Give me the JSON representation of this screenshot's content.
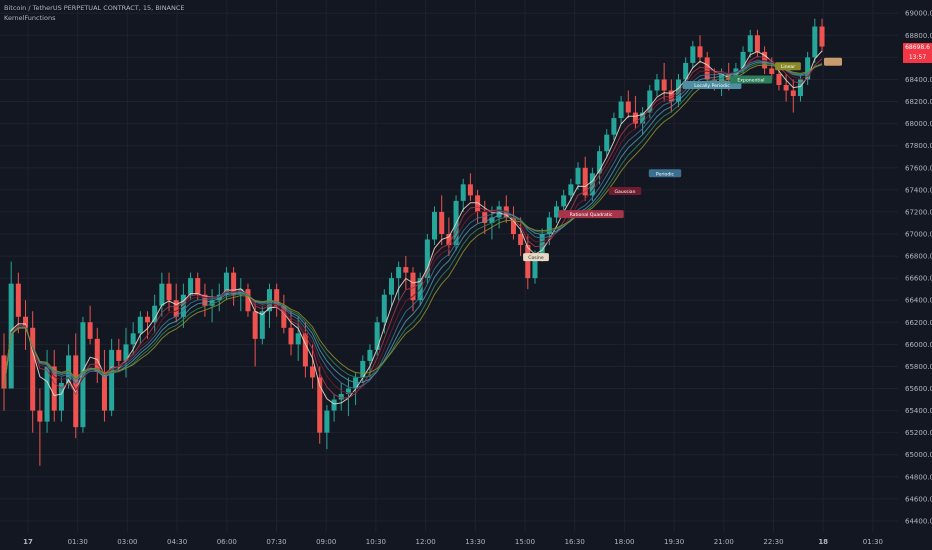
{
  "header": {
    "title": "Bitcoin / TetherUS PERPETUAL CONTRACT, 15, BINANCE",
    "indicator": "KernelFunctions"
  },
  "price_tag": {
    "price": "68698.6",
    "countdown": "13:57"
  },
  "colors": {
    "background": "#131722",
    "grid": "#1e222d",
    "up": "#26a69a",
    "down": "#ef5350",
    "axis_text": "#b2b5be",
    "price_tag": "#f23645"
  },
  "chart_data": {
    "type": "candlestick",
    "y_ticks": [
      "69000.0",
      "68800.0",
      "68600.0",
      "68400.0",
      "68200.0",
      "68000.0",
      "67800.0",
      "67600.0",
      "67400.0",
      "67200.0",
      "67000.0",
      "66800.0",
      "66600.0",
      "66400.0",
      "66200.0",
      "66000.0",
      "65800.0",
      "65600.0",
      "65400.0",
      "65200.0",
      "65000.0",
      "64800.0",
      "64600.0",
      "64400.0"
    ],
    "x_ticks": [
      "17",
      "01:30",
      "03:00",
      "04:30",
      "06:00",
      "07:30",
      "09:00",
      "10:30",
      "12:00",
      "13:30",
      "15:00",
      "16:30",
      "18:00",
      "19:30",
      "21:00",
      "22:30",
      "18",
      "01:30"
    ],
    "x_ticks_bold": [
      "17",
      "18"
    ],
    "ylim": [
      64300,
      69120
    ],
    "grid": true,
    "candles": [
      [
        65900,
        66100,
        65400,
        65600
      ],
      [
        65600,
        66750,
        65600,
        66550
      ],
      [
        66550,
        66650,
        66100,
        66250
      ],
      [
        66250,
        66400,
        65950,
        66150
      ],
      [
        66150,
        66300,
        65200,
        65400
      ],
      [
        65400,
        65600,
        64900,
        65300
      ],
      [
        65300,
        65950,
        65200,
        65800
      ],
      [
        65800,
        65950,
        65300,
        65400
      ],
      [
        65400,
        65700,
        65300,
        65650
      ],
      [
        65650,
        66000,
        65600,
        65900
      ],
      [
        65900,
        66100,
        65150,
        65250
      ],
      [
        65250,
        66250,
        65200,
        66200
      ],
      [
        66200,
        66350,
        66000,
        66050
      ],
      [
        66050,
        66150,
        65650,
        65750
      ],
      [
        65750,
        65950,
        65300,
        65400
      ],
      [
        65400,
        66050,
        65350,
        65950
      ],
      [
        65950,
        66050,
        65750,
        65850
      ],
      [
        65850,
        66150,
        65700,
        66000
      ],
      [
        66000,
        66200,
        65900,
        66100
      ],
      [
        66100,
        66300,
        66000,
        66250
      ],
      [
        66250,
        66300,
        66050,
        66200
      ],
      [
        66200,
        66450,
        66100,
        66350
      ],
      [
        66350,
        66650,
        66250,
        66550
      ],
      [
        66550,
        66650,
        66300,
        66400
      ],
      [
        66400,
        66550,
        66200,
        66250
      ],
      [
        66250,
        66550,
        66150,
        66450
      ],
      [
        66450,
        66650,
        66400,
        66600
      ],
      [
        66600,
        66650,
        66400,
        66450
      ],
      [
        66450,
        66550,
        66250,
        66350
      ],
      [
        66350,
        66500,
        66200,
        66400
      ],
      [
        66400,
        66550,
        66300,
        66450
      ],
      [
        66450,
        66700,
        66400,
        66650
      ],
      [
        66650,
        66700,
        66350,
        66450
      ],
      [
        66450,
        66600,
        66300,
        66500
      ],
      [
        66500,
        66550,
        66250,
        66300
      ],
      [
        66300,
        66400,
        65800,
        66050
      ],
      [
        66050,
        66350,
        66000,
        66300
      ],
      [
        66300,
        66550,
        66150,
        66500
      ],
      [
        66500,
        66550,
        66250,
        66350
      ],
      [
        66350,
        66450,
        66100,
        66150
      ],
      [
        66150,
        66300,
        65900,
        66000
      ],
      [
        66000,
        66250,
        65850,
        66100
      ],
      [
        66100,
        66200,
        65700,
        65800
      ],
      [
        65800,
        66000,
        65600,
        65700
      ],
      [
        65700,
        65800,
        65100,
        65200
      ],
      [
        65200,
        65450,
        65050,
        65400
      ],
      [
        65400,
        65550,
        65300,
        65500
      ],
      [
        65500,
        65650,
        65400,
        65550
      ],
      [
        65550,
        65700,
        65350,
        65600
      ],
      [
        65600,
        65750,
        65450,
        65700
      ],
      [
        65700,
        65900,
        65650,
        65850
      ],
      [
        65850,
        66000,
        65700,
        65950
      ],
      [
        65950,
        66250,
        65900,
        66200
      ],
      [
        66200,
        66500,
        66100,
        66450
      ],
      [
        66450,
        66650,
        66350,
        66600
      ],
      [
        66600,
        66750,
        66400,
        66700
      ],
      [
        66700,
        66800,
        66500,
        66650
      ],
      [
        66650,
        66700,
        66300,
        66400
      ],
      [
        66400,
        66650,
        66350,
        66600
      ],
      [
        66600,
        67000,
        66550,
        66950
      ],
      [
        66950,
        67250,
        66900,
        67200
      ],
      [
        67200,
        67350,
        66900,
        67000
      ],
      [
        67000,
        67150,
        66800,
        66900
      ],
      [
        66900,
        67350,
        66850,
        67300
      ],
      [
        67300,
        67500,
        67200,
        67450
      ],
      [
        67450,
        67550,
        67300,
        67350
      ],
      [
        67350,
        67400,
        67100,
        67200
      ],
      [
        67200,
        67300,
        67000,
        67100
      ],
      [
        67100,
        67250,
        66950,
        67150
      ],
      [
        67150,
        67300,
        67050,
        67250
      ],
      [
        67250,
        67350,
        67100,
        67150
      ],
      [
        67150,
        67250,
        66950,
        67000
      ],
      [
        67000,
        67150,
        66800,
        66900
      ],
      [
        66900,
        67000,
        66500,
        66600
      ],
      [
        66600,
        66850,
        66550,
        66800
      ],
      [
        66800,
        67050,
        66750,
        67000
      ],
      [
        67000,
        67200,
        66900,
        67150
      ],
      [
        67150,
        67300,
        67100,
        67250
      ],
      [
        67250,
        67400,
        67150,
        67350
      ],
      [
        67350,
        67500,
        67300,
        67450
      ],
      [
        67450,
        67650,
        67400,
        67600
      ],
      [
        67600,
        67700,
        67300,
        67350
      ],
      [
        67350,
        67600,
        67300,
        67550
      ],
      [
        67550,
        67800,
        67450,
        67750
      ],
      [
        67750,
        67950,
        67700,
        67900
      ],
      [
        67900,
        68100,
        67850,
        68050
      ],
      [
        68050,
        68250,
        68000,
        68200
      ],
      [
        68200,
        68300,
        68050,
        68100
      ],
      [
        68100,
        68250,
        67950,
        68000
      ],
      [
        68000,
        68150,
        67900,
        68100
      ],
      [
        68100,
        68350,
        68050,
        68300
      ],
      [
        68300,
        68450,
        68250,
        68400
      ],
      [
        68400,
        68550,
        68200,
        68300
      ],
      [
        68300,
        68400,
        68100,
        68200
      ],
      [
        68200,
        68450,
        68150,
        68400
      ],
      [
        68400,
        68600,
        68350,
        68550
      ],
      [
        68550,
        68750,
        68500,
        68700
      ],
      [
        68700,
        68800,
        68550,
        68600
      ],
      [
        68600,
        68650,
        68350,
        68400
      ],
      [
        68400,
        68500,
        68300,
        68350
      ],
      [
        68350,
        68500,
        68250,
        68450
      ],
      [
        68450,
        68550,
        68300,
        68400
      ],
      [
        68400,
        68550,
        68350,
        68500
      ],
      [
        68500,
        68700,
        68450,
        68650
      ],
      [
        68650,
        68850,
        68600,
        68800
      ],
      [
        68800,
        68850,
        68600,
        68650
      ],
      [
        68650,
        68700,
        68450,
        68500
      ],
      [
        68500,
        68600,
        68400,
        68450
      ],
      [
        68450,
        68550,
        68300,
        68350
      ],
      [
        68350,
        68450,
        68200,
        68300
      ],
      [
        68300,
        68400,
        68100,
        68250
      ],
      [
        68250,
        68450,
        68200,
        68400
      ],
      [
        68400,
        68650,
        68350,
        68600
      ],
      [
        68600,
        68950,
        68550,
        68880
      ],
      [
        68880,
        68950,
        68650,
        68698.6
      ]
    ],
    "kernel_lines": [
      {
        "name": "Cosine",
        "label_value": 66790,
        "color": "#e9d8c4",
        "text_color": "#2a2a2a",
        "start": 66350,
        "end": 68620
      },
      {
        "name": "Rational Quadratic",
        "label_value": 67180,
        "color": "#a7354a",
        "text_color": "#ffffff",
        "start": 66000,
        "end": 68700
      },
      {
        "name": "Gaussian",
        "label_value": 67390,
        "color": "#6d1d2d",
        "text_color": "#ffffff",
        "start": 66100,
        "end": 68650
      },
      {
        "name": "Periodic",
        "label_value": 67550,
        "color": "#3b6f8f",
        "text_color": "#ffffff",
        "start": 66300,
        "end": 68600
      },
      {
        "name": "Locally Periodic",
        "label_value": 68350,
        "color": "#4f8fa3",
        "text_color": "#ffffff",
        "start": 66550,
        "end": 68750
      },
      {
        "name": "Exponential",
        "label_value": 68400,
        "color": "#2e7d5a",
        "text_color": "#ffffff",
        "start": 66650,
        "end": 68800
      },
      {
        "name": "Linear",
        "label_value": 68520,
        "color": "#8a8a2a",
        "text_color": "#ffffff",
        "start": 66750,
        "end": 68850
      }
    ]
  }
}
